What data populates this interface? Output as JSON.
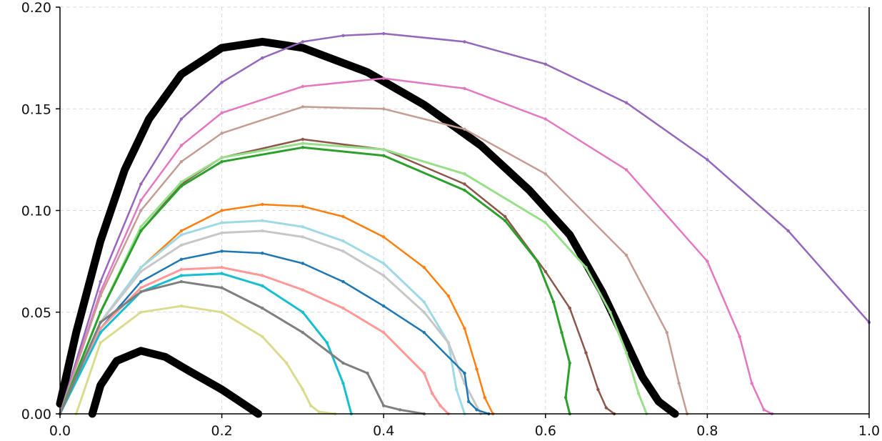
{
  "chart_data": {
    "type": "line",
    "title": "",
    "xlabel": "",
    "ylabel": "",
    "xlim": [
      0.0,
      1.0
    ],
    "ylim": [
      0.0,
      0.2
    ],
    "grid": true,
    "legend": "none",
    "x_ticks": [
      0.0,
      0.2,
      0.4,
      0.6,
      0.8,
      1.0
    ],
    "x_tick_labels": [
      "0.0",
      "0.2",
      "0.4",
      "0.6",
      "0.8",
      "1.0"
    ],
    "y_ticks": [
      0.0,
      0.05,
      0.1,
      0.15,
      0.2
    ],
    "y_tick_labels": [
      "0.00",
      "0.05",
      "0.10",
      "0.15",
      "0.20"
    ],
    "series": [
      {
        "color": "#000000",
        "width": 11,
        "x": [
          0.0,
          0.02,
          0.05,
          0.08,
          0.11,
          0.15,
          0.2,
          0.25,
          0.3,
          0.38,
          0.45,
          0.52,
          0.58,
          0.63,
          0.67,
          0.7,
          0.72,
          0.74,
          0.76
        ],
        "y": [
          0.005,
          0.04,
          0.085,
          0.12,
          0.145,
          0.167,
          0.18,
          0.183,
          0.18,
          0.168,
          0.152,
          0.132,
          0.11,
          0.088,
          0.06,
          0.035,
          0.018,
          0.006,
          0.0
        ]
      },
      {
        "color": "#000000",
        "width": 11,
        "x": [
          0.04,
          0.05,
          0.07,
          0.1,
          0.13,
          0.16,
          0.2,
          0.23,
          0.245
        ],
        "y": [
          0.0,
          0.014,
          0.026,
          0.031,
          0.028,
          0.021,
          0.012,
          0.004,
          0.0
        ]
      },
      {
        "color": "#9467bd",
        "width": 2.5,
        "x": [
          0.0,
          0.05,
          0.1,
          0.15,
          0.2,
          0.25,
          0.3,
          0.35,
          0.4,
          0.5,
          0.6,
          0.7,
          0.8,
          0.9,
          1.0
        ],
        "y": [
          0.0,
          0.065,
          0.113,
          0.145,
          0.163,
          0.175,
          0.183,
          0.186,
          0.187,
          0.183,
          0.172,
          0.153,
          0.125,
          0.09,
          0.045
        ]
      },
      {
        "color": "#e377c2",
        "width": 2.5,
        "x": [
          0.0,
          0.05,
          0.1,
          0.15,
          0.2,
          0.3,
          0.4,
          0.5,
          0.6,
          0.7,
          0.8,
          0.84,
          0.855,
          0.87,
          0.88
        ],
        "y": [
          0.0,
          0.06,
          0.105,
          0.132,
          0.148,
          0.161,
          0.165,
          0.16,
          0.145,
          0.12,
          0.075,
          0.038,
          0.015,
          0.002,
          0.0
        ]
      },
      {
        "color": "#c49c94",
        "width": 2.5,
        "x": [
          0.0,
          0.05,
          0.1,
          0.15,
          0.2,
          0.3,
          0.4,
          0.5,
          0.6,
          0.7,
          0.75,
          0.765,
          0.775
        ],
        "y": [
          0.0,
          0.058,
          0.1,
          0.124,
          0.138,
          0.151,
          0.15,
          0.14,
          0.118,
          0.078,
          0.04,
          0.015,
          0.0
        ]
      },
      {
        "color": "#8c564b",
        "width": 2.5,
        "x": [
          0.0,
          0.05,
          0.1,
          0.15,
          0.2,
          0.3,
          0.4,
          0.5,
          0.55,
          0.6,
          0.63,
          0.65,
          0.665,
          0.675,
          0.685
        ],
        "y": [
          0.0,
          0.05,
          0.09,
          0.113,
          0.126,
          0.135,
          0.13,
          0.113,
          0.097,
          0.07,
          0.052,
          0.03,
          0.012,
          0.003,
          0.0
        ]
      },
      {
        "color": "#98df8a",
        "width": 3,
        "x": [
          0.0,
          0.05,
          0.1,
          0.15,
          0.2,
          0.3,
          0.4,
          0.5,
          0.6,
          0.65,
          0.68,
          0.7,
          0.715,
          0.725
        ],
        "y": [
          0.0,
          0.05,
          0.092,
          0.114,
          0.126,
          0.133,
          0.13,
          0.118,
          0.094,
          0.072,
          0.05,
          0.03,
          0.01,
          0.0
        ]
      },
      {
        "color": "#2ca02c",
        "width": 3,
        "x": [
          0.0,
          0.05,
          0.1,
          0.15,
          0.2,
          0.3,
          0.4,
          0.5,
          0.55,
          0.59,
          0.61,
          0.62,
          0.63,
          0.625,
          0.63
        ],
        "y": [
          0.0,
          0.05,
          0.09,
          0.112,
          0.124,
          0.131,
          0.127,
          0.11,
          0.095,
          0.075,
          0.055,
          0.04,
          0.025,
          0.008,
          0.0
        ]
      },
      {
        "color": "#ff7f0e",
        "width": 2.5,
        "x": [
          0.0,
          0.05,
          0.1,
          0.15,
          0.2,
          0.25,
          0.3,
          0.35,
          0.4,
          0.45,
          0.48,
          0.5,
          0.515,
          0.525,
          0.535
        ],
        "y": [
          0.0,
          0.045,
          0.072,
          0.09,
          0.1,
          0.103,
          0.102,
          0.097,
          0.087,
          0.072,
          0.058,
          0.042,
          0.022,
          0.008,
          0.0
        ]
      },
      {
        "color": "#9edae5",
        "width": 3,
        "x": [
          0.0,
          0.05,
          0.1,
          0.15,
          0.2,
          0.25,
          0.3,
          0.35,
          0.4,
          0.45,
          0.48,
          0.49,
          0.5
        ],
        "y": [
          0.0,
          0.045,
          0.072,
          0.088,
          0.094,
          0.095,
          0.092,
          0.085,
          0.074,
          0.055,
          0.035,
          0.012,
          0.0
        ]
      },
      {
        "color": "#c7c7c7",
        "width": 3,
        "x": [
          0.0,
          0.05,
          0.1,
          0.15,
          0.2,
          0.25,
          0.3,
          0.35,
          0.4,
          0.45,
          0.48,
          0.5,
          0.52
        ],
        "y": [
          0.0,
          0.045,
          0.07,
          0.083,
          0.089,
          0.09,
          0.087,
          0.08,
          0.068,
          0.05,
          0.035,
          0.015,
          0.0
        ]
      },
      {
        "color": "#1f77b4",
        "width": 2.5,
        "x": [
          0.0,
          0.05,
          0.1,
          0.15,
          0.2,
          0.25,
          0.3,
          0.35,
          0.4,
          0.45,
          0.5,
          0.505,
          0.515,
          0.53
        ],
        "y": [
          0.0,
          0.042,
          0.065,
          0.076,
          0.08,
          0.079,
          0.074,
          0.065,
          0.053,
          0.04,
          0.02,
          0.006,
          0.002,
          0.0
        ]
      },
      {
        "color": "#ff9896",
        "width": 3,
        "x": [
          0.0,
          0.05,
          0.1,
          0.15,
          0.2,
          0.25,
          0.3,
          0.35,
          0.4,
          0.45,
          0.46,
          0.47,
          0.48
        ],
        "y": [
          0.0,
          0.042,
          0.062,
          0.071,
          0.072,
          0.068,
          0.061,
          0.052,
          0.04,
          0.02,
          0.01,
          0.004,
          0.0
        ]
      },
      {
        "color": "#17becf",
        "width": 3,
        "x": [
          0.0,
          0.05,
          0.1,
          0.15,
          0.2,
          0.25,
          0.3,
          0.33,
          0.35,
          0.36
        ],
        "y": [
          0.0,
          0.04,
          0.06,
          0.068,
          0.069,
          0.063,
          0.05,
          0.035,
          0.015,
          0.0
        ]
      },
      {
        "color": "#7f7f7f",
        "width": 3,
        "x": [
          0.0,
          0.05,
          0.1,
          0.15,
          0.2,
          0.25,
          0.3,
          0.35,
          0.38,
          0.4,
          0.42,
          0.45
        ],
        "y": [
          0.0,
          0.045,
          0.06,
          0.065,
          0.062,
          0.052,
          0.04,
          0.025,
          0.02,
          0.004,
          0.002,
          0.0
        ]
      },
      {
        "color": "#dbdb8d",
        "width": 3,
        "x": [
          0.02,
          0.05,
          0.1,
          0.15,
          0.2,
          0.25,
          0.28,
          0.3,
          0.31,
          0.32,
          0.34
        ],
        "y": [
          0.0,
          0.035,
          0.05,
          0.053,
          0.05,
          0.038,
          0.025,
          0.012,
          0.004,
          0.001,
          0.0
        ]
      }
    ]
  }
}
